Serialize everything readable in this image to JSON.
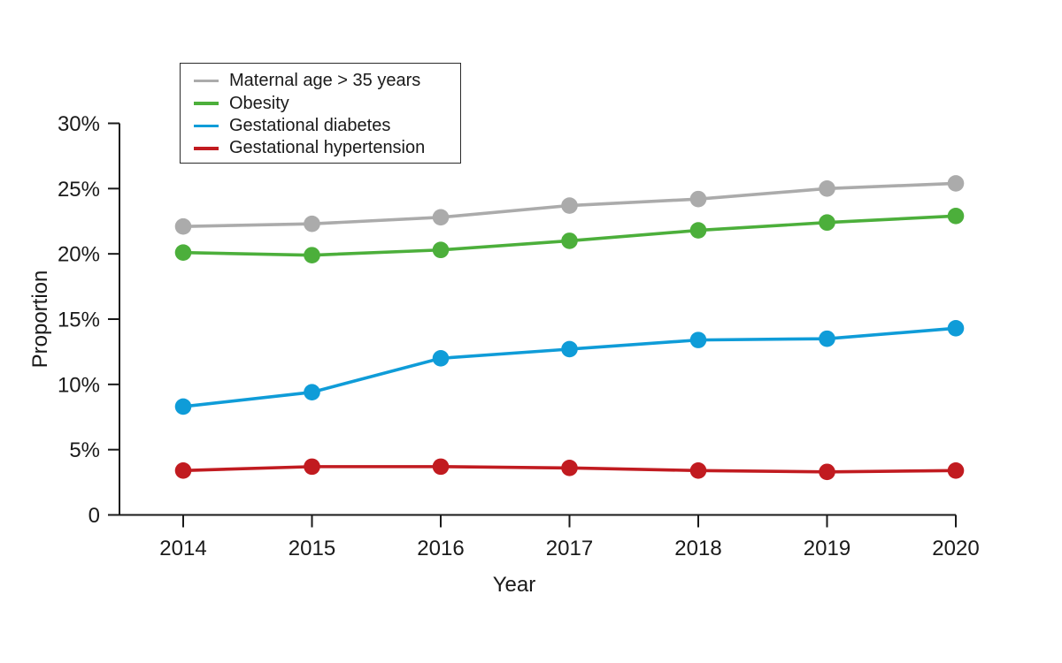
{
  "chart_data": {
    "type": "line",
    "title": "",
    "xlabel": "Year",
    "ylabel": "Proportion",
    "categories": [
      "2014",
      "2015",
      "2016",
      "2017",
      "2018",
      "2019",
      "2020"
    ],
    "y_ticks": [
      {
        "value": 0,
        "label": "0"
      },
      {
        "value": 5,
        "label": "5%"
      },
      {
        "value": 10,
        "label": "10%"
      },
      {
        "value": 15,
        "label": "15%"
      },
      {
        "value": 20,
        "label": "20%"
      },
      {
        "value": 25,
        "label": "25%"
      },
      {
        "value": 30,
        "label": "30%"
      }
    ],
    "ylim": [
      0,
      30
    ],
    "grid": false,
    "legend_position": "top-left",
    "marker": "circle",
    "axis_color": "#1a1a1a",
    "series": [
      {
        "name": "Maternal age > 35 years",
        "color": "#ababab",
        "values": [
          22.1,
          22.3,
          22.8,
          23.7,
          24.2,
          25.0,
          25.4
        ]
      },
      {
        "name": "Obesity",
        "color": "#4caf3b",
        "values": [
          20.1,
          19.9,
          20.3,
          21.0,
          21.8,
          22.4,
          22.9
        ]
      },
      {
        "name": "Gestational diabetes",
        "color": "#0f9cd8",
        "values": [
          8.3,
          9.4,
          12.0,
          12.7,
          13.4,
          13.5,
          14.3
        ]
      },
      {
        "name": "Gestational hypertension",
        "color": "#c11b20",
        "values": [
          3.4,
          3.7,
          3.7,
          3.6,
          3.4,
          3.3,
          3.4
        ]
      }
    ]
  }
}
